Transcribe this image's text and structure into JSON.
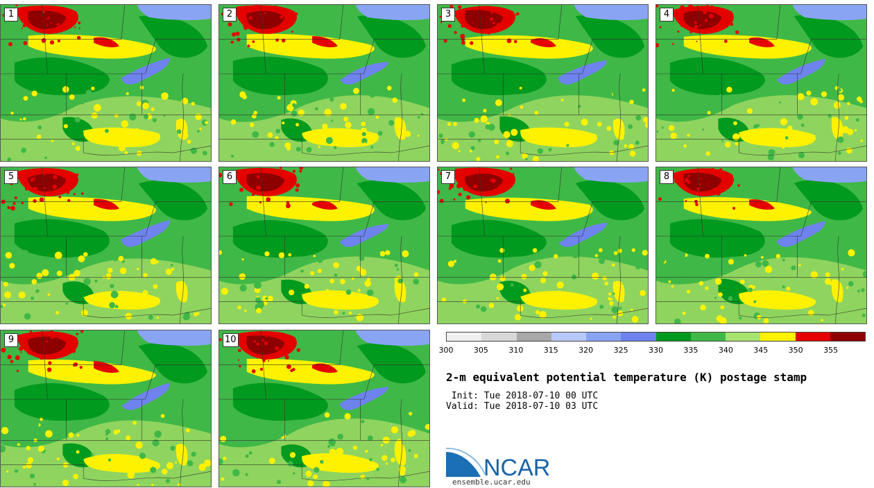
{
  "panels": [
    {
      "label": "1"
    },
    {
      "label": "2"
    },
    {
      "label": "3"
    },
    {
      "label": "4"
    },
    {
      "label": "5"
    },
    {
      "label": "6"
    },
    {
      "label": "7"
    },
    {
      "label": "8"
    },
    {
      "label": "9"
    },
    {
      "label": "10"
    }
  ],
  "colorbar": {
    "colors": [
      "#f0f0f0",
      "#d8d8d8",
      "#a8a8a8",
      "#b8c8f8",
      "#8aa4f4",
      "#6f83ee",
      "#009a1e",
      "#3fb847",
      "#a6e36f",
      "#fff200",
      "#e50000",
      "#8e0000"
    ],
    "ticks": [
      "300",
      "305",
      "310",
      "315",
      "320",
      "325",
      "330",
      "335",
      "340",
      "345",
      "350",
      "355"
    ]
  },
  "title": "2-m equivalent potential temperature (K) postage stamp",
  "init": " Init: Tue 2018-07-10 00 UTC",
  "valid": "Valid: Tue 2018-07-10 03 UTC",
  "logo": {
    "text": "NCAR",
    "url": "ensemble.ucar.edu",
    "color": "#1763a8"
  }
}
